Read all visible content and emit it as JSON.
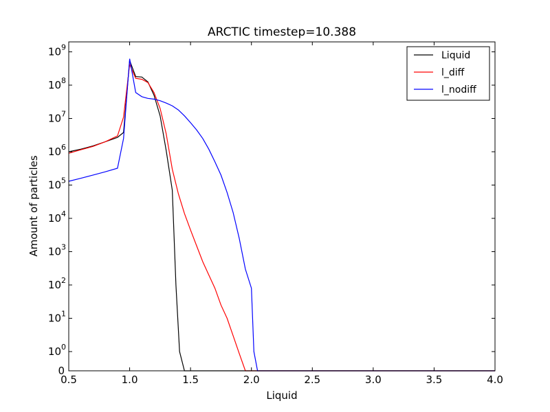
{
  "chart_data": {
    "type": "line",
    "title": "ARCTIC timestep=10.388",
    "xlabel": "Liquid",
    "ylabel": "Amount of particles",
    "xlim": [
      0.5,
      4.0
    ],
    "yscale": "symlog",
    "grid": false,
    "legend_position": "top-right",
    "x_ticks": [
      "0.5",
      "1.0",
      "1.5",
      "2.0",
      "2.5",
      "3.0",
      "3.5",
      "4.0"
    ],
    "y_ticks": [
      {
        "text": "0",
        "exp": ""
      },
      {
        "text": "10",
        "exp": "0"
      },
      {
        "text": "10",
        "exp": "1"
      },
      {
        "text": "10",
        "exp": "2"
      },
      {
        "text": "10",
        "exp": "3"
      },
      {
        "text": "10",
        "exp": "4"
      },
      {
        "text": "10",
        "exp": "5"
      },
      {
        "text": "10",
        "exp": "6"
      },
      {
        "text": "10",
        "exp": "7"
      },
      {
        "text": "10",
        "exp": "8"
      },
      {
        "text": "10",
        "exp": "9"
      }
    ],
    "series": [
      {
        "name": "Liquid",
        "color": "#000000",
        "points": [
          [
            0.5,
            1000000
          ],
          [
            0.6,
            1200000
          ],
          [
            0.7,
            1500000
          ],
          [
            0.8,
            2000000
          ],
          [
            0.9,
            2700000
          ],
          [
            0.95,
            3800000
          ],
          [
            1.0,
            550000000
          ],
          [
            1.05,
            180000000
          ],
          [
            1.1,
            175000000
          ],
          [
            1.15,
            125000000
          ],
          [
            1.2,
            50000000
          ],
          [
            1.25,
            12000000
          ],
          [
            1.3,
            1100000
          ],
          [
            1.35,
            70000
          ],
          [
            1.38,
            100
          ],
          [
            1.41,
            1
          ],
          [
            1.45,
            0
          ],
          [
            1.5,
            0
          ],
          [
            4.0,
            0
          ]
        ]
      },
      {
        "name": "l_diff",
        "color": "#ff0000",
        "points": [
          [
            0.5,
            900000
          ],
          [
            0.6,
            1150000
          ],
          [
            0.7,
            1450000
          ],
          [
            0.8,
            2000000
          ],
          [
            0.9,
            3000000
          ],
          [
            0.95,
            11000000
          ],
          [
            1.0,
            420000000
          ],
          [
            1.05,
            160000000
          ],
          [
            1.1,
            150000000
          ],
          [
            1.15,
            120000000
          ],
          [
            1.2,
            60000000
          ],
          [
            1.25,
            20000000
          ],
          [
            1.3,
            3500000
          ],
          [
            1.35,
            300000
          ],
          [
            1.4,
            55000
          ],
          [
            1.45,
            14000
          ],
          [
            1.5,
            4500
          ],
          [
            1.55,
            1500
          ],
          [
            1.6,
            500
          ],
          [
            1.65,
            200
          ],
          [
            1.7,
            80
          ],
          [
            1.75,
            25
          ],
          [
            1.8,
            10
          ],
          [
            1.85,
            3
          ],
          [
            1.9,
            0.9
          ],
          [
            1.95,
            0
          ],
          [
            4.0,
            0
          ]
        ]
      },
      {
        "name": "l_nodiff",
        "color": "#0000ff",
        "points": [
          [
            0.5,
            130000
          ],
          [
            0.6,
            160000
          ],
          [
            0.7,
            200000
          ],
          [
            0.8,
            250000
          ],
          [
            0.9,
            320000
          ],
          [
            0.95,
            2500000
          ],
          [
            1.0,
            620000000
          ],
          [
            1.05,
            60000000
          ],
          [
            1.1,
            45000000
          ],
          [
            1.15,
            40000000
          ],
          [
            1.2,
            38000000
          ],
          [
            1.25,
            34000000
          ],
          [
            1.3,
            29000000
          ],
          [
            1.35,
            24000000
          ],
          [
            1.4,
            18000000
          ],
          [
            1.45,
            12000000
          ],
          [
            1.5,
            7500000
          ],
          [
            1.55,
            4500000
          ],
          [
            1.6,
            2500000
          ],
          [
            1.65,
            1200000
          ],
          [
            1.7,
            500000
          ],
          [
            1.75,
            200000
          ],
          [
            1.8,
            60000
          ],
          [
            1.85,
            15000
          ],
          [
            1.9,
            2500
          ],
          [
            1.95,
            300
          ],
          [
            2.0,
            80
          ],
          [
            2.02,
            1
          ],
          [
            2.05,
            0
          ],
          [
            4.0,
            0
          ]
        ]
      }
    ]
  }
}
